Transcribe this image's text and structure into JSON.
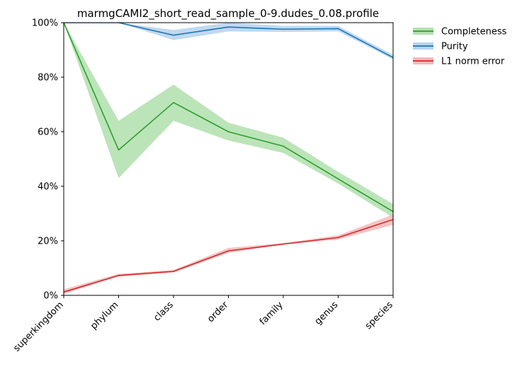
{
  "chart_data": {
    "type": "line",
    "title": "marmgCAMI2_short_read_sample_0-9.dudes_0.08.profile",
    "xlabel": "",
    "ylabel": "",
    "categories": [
      "superkingdom",
      "phylum",
      "class",
      "order",
      "family",
      "genus",
      "species"
    ],
    "ylim": [
      0,
      100
    ],
    "yticks": [
      "0%",
      "20%",
      "40%",
      "60%",
      "80%",
      "100%"
    ],
    "grid": false,
    "legend_position": "outside-top-right",
    "series": [
      {
        "name": "Completeness",
        "color": "#2ca02c",
        "band_color": "#98d594",
        "values": [
          100,
          53.3,
          70.7,
          60,
          54.7,
          42.7,
          30.7
        ],
        "lower": [
          100,
          43,
          64,
          56.8,
          52.2,
          41.0,
          28.5
        ],
        "upper": [
          100,
          64,
          77.3,
          63.3,
          57.8,
          45.3,
          33.5
        ]
      },
      {
        "name": "Purity",
        "color": "#1f77b4",
        "band_color": "#9ec5e8",
        "values": [
          100,
          100,
          95.4,
          98.4,
          97.6,
          97.8,
          87.2
        ],
        "lower": [
          100,
          100,
          93.6,
          96.8,
          96.6,
          96.8,
          86.6
        ],
        "upper": [
          100,
          100,
          97.3,
          100,
          98.8,
          98.8,
          88.2
        ]
      },
      {
        "name": "L1 norm error",
        "color": "#d62728",
        "band_color": "#f0a3a4",
        "values": [
          1.2,
          7.3,
          8.8,
          16.3,
          18.8,
          21.2,
          27.8
        ],
        "lower": [
          0.5,
          6.9,
          8.3,
          15.6,
          18.6,
          20.5,
          25.8
        ],
        "upper": [
          2.2,
          7.9,
          9.3,
          17.4,
          19.2,
          22.0,
          29.6
        ]
      }
    ]
  }
}
